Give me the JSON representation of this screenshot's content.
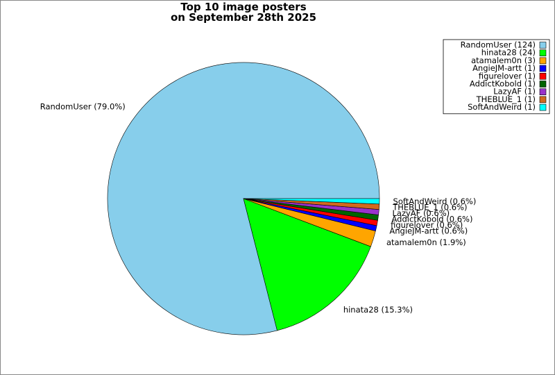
{
  "chart_data": {
    "type": "pie",
    "title": "Top 10 image posters\non September 28th 2025",
    "legend_labels": [
      "RandomUser (124)",
      "hinata28 (24)",
      "atamalem0n (3)",
      "AngieJM-artt (1)",
      "figurelover (1)",
      "AddictKobold (1)",
      "LazyAF (1)",
      "THEBLUE_1 (1)",
      "SoftAndWeird (1)"
    ],
    "slice_labels": [
      "RandomUser (79.0%)",
      "hinata28 (15.3%)",
      "atamalem0n (1.9%)",
      "AngieJM-artt (0.6%)",
      "figurelover (0.6%)",
      "AddictKobold (0.6%)",
      "LazyAF (0.6%)",
      "THEBLUE_1 (0.6%)",
      "SoftAndWeird (0.6%)"
    ],
    "values": [
      124,
      24,
      3,
      1,
      1,
      1,
      1,
      1,
      1
    ],
    "colors": [
      "#87ceeb",
      "#00ff00",
      "#ffa500",
      "#0000ff",
      "#ff0000",
      "#006400",
      "#9932cc",
      "#d2691e",
      "#00ffff"
    ],
    "legend": "upper right"
  }
}
